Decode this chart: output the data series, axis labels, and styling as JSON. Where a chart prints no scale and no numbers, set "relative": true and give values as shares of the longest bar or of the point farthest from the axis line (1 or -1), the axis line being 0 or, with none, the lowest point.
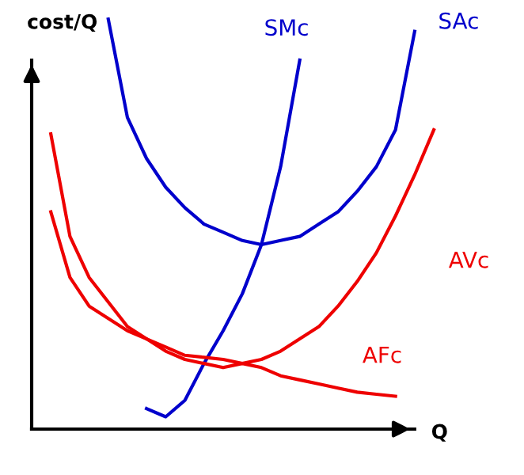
{
  "chart_data": {
    "type": "line",
    "relative": true,
    "xlabel": "Q",
    "ylabel": "cost/Q",
    "legend": false,
    "marker": "none",
    "line_style": "solid",
    "categories": [
      null,
      null,
      null,
      null,
      null,
      null,
      null,
      null,
      null,
      null,
      null,
      null,
      null,
      null,
      null,
      null,
      null,
      null,
      null,
      null,
      null,
      null
    ],
    "series": [
      {
        "name": "SMc",
        "color": "#0000cc",
        "values": [
          null,
          null,
          null,
          null,
          null,
          null,
          0.05,
          0.03,
          0.07,
          0.16,
          0.24,
          0.33,
          0.45,
          0.64,
          0.9,
          null,
          null,
          null,
          null,
          null,
          null,
          null
        ]
      },
      {
        "name": "SAc",
        "color": "#0000cc",
        "values": [
          null,
          null,
          null,
          null,
          1,
          0.76,
          0.66,
          0.59,
          0.54,
          0.5,
          0.48,
          0.46,
          0.45,
          0.46,
          0.47,
          0.5,
          0.53,
          0.58,
          0.64,
          0.73,
          0.97,
          null
        ]
      },
      {
        "name": "AVc",
        "color": "#ee0000",
        "values": [
          null,
          0.72,
          0.47,
          0.37,
          0.31,
          0.25,
          0.22,
          0.19,
          0.17,
          0.16,
          0.15,
          0.16,
          0.17,
          0.19,
          0.22,
          0.25,
          0.3,
          0.36,
          0.43,
          0.52,
          0.62,
          0.73
        ]
      },
      {
        "name": "AFc",
        "color": "#ee0000",
        "values": [
          null,
          0.53,
          0.37,
          0.3,
          0.27,
          0.24,
          0.22,
          0.2,
          0.18,
          0.175,
          0.17,
          0.16,
          0.15,
          0.13,
          0.12,
          0.11,
          0.1,
          0.09,
          0.085,
          0.08,
          null,
          null
        ]
      }
    ]
  }
}
